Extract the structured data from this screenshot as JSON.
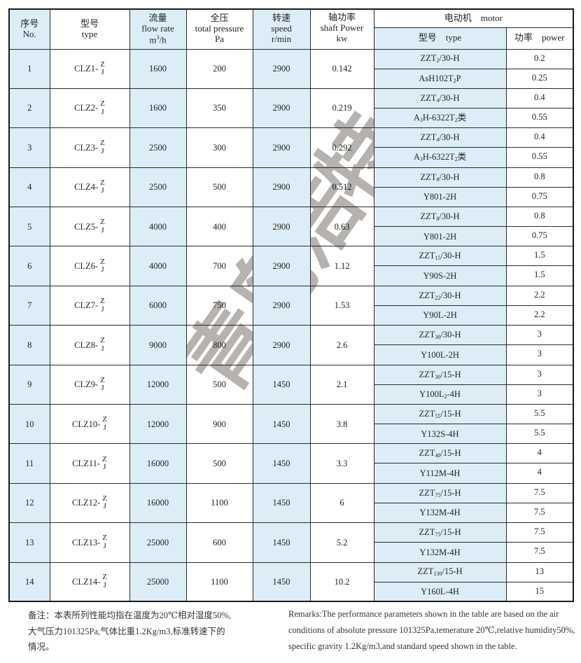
{
  "header": {
    "no_zh": "序号",
    "no_en": "No.",
    "type_zh": "型号",
    "type_en": "type",
    "flow_zh": "流量",
    "flow_en": "flow rate",
    "flow_unit": "m",
    "flow_unit_sup": "3",
    "flow_unit_rest": "/h",
    "pressure_zh": "全压",
    "pressure_en": "total pressure",
    "pressure_unit": "Pa",
    "speed_zh": "转速",
    "speed_en": "speed",
    "speed_unit": "r/min",
    "power_zh": "轴功率",
    "power_en": "shaft Power",
    "power_unit": "kw",
    "motor": "电动机　motor",
    "motor_type": "型号　type",
    "motor_power": "功率　power"
  },
  "colors": {
    "column_fill": "#dcedf7",
    "border": "#1a1a1a"
  },
  "rows": [
    {
      "no": "1",
      "model": "CLZ1-",
      "variants": [
        "Z",
        "J"
      ],
      "flow": "1600",
      "pressure": "200",
      "speed": "2900",
      "shaft": "0.142",
      "motors": [
        {
          "parts": [
            {
              "t": "ZZT"
            },
            {
              "sub": "2"
            },
            {
              "t": "/30-H"
            }
          ],
          "power": "0.2"
        },
        {
          "parts": [
            {
              "t": "AsH102T"
            },
            {
              "sub": "2"
            },
            {
              "t": "P"
            }
          ],
          "power": "0.25"
        }
      ]
    },
    {
      "no": "2",
      "model": "CLZ2-",
      "variants": [
        "Z",
        "J"
      ],
      "flow": "1600",
      "pressure": "350",
      "speed": "2900",
      "shaft": "0.219",
      "motors": [
        {
          "parts": [
            {
              "t": "ZZT"
            },
            {
              "sub": "4"
            },
            {
              "t": "/30-H"
            }
          ],
          "power": "0.4"
        },
        {
          "parts": [
            {
              "t": "A"
            },
            {
              "sub": "3"
            },
            {
              "t": "H-6322T"
            },
            {
              "sub": "2"
            },
            {
              "t": "类"
            }
          ],
          "power": "0.55"
        }
      ]
    },
    {
      "no": "3",
      "model": "CLZ3-",
      "variants": [
        "Z",
        "J"
      ],
      "flow": "2500",
      "pressure": "300",
      "speed": "2900",
      "shaft": "0.292",
      "motors": [
        {
          "parts": [
            {
              "t": "ZZT"
            },
            {
              "sub": "4"
            },
            {
              "t": "/30-H"
            }
          ],
          "power": "0.4"
        },
        {
          "parts": [
            {
              "t": "A"
            },
            {
              "sub": "3"
            },
            {
              "t": "H-6322T"
            },
            {
              "sub": "2"
            },
            {
              "t": "类"
            }
          ],
          "power": "0.55"
        }
      ]
    },
    {
      "no": "4",
      "model": "CLZ4-",
      "variants": [
        "Z",
        "J"
      ],
      "flow": "2500",
      "pressure": "500",
      "speed": "2900",
      "shaft": "0.512",
      "motors": [
        {
          "parts": [
            {
              "t": "ZZT"
            },
            {
              "sub": "8"
            },
            {
              "t": "/30-H"
            }
          ],
          "power": "0.8"
        },
        {
          "parts": [
            {
              "t": "Y801-2H"
            }
          ],
          "power": "0.75"
        }
      ]
    },
    {
      "no": "5",
      "model": "CLZ5-",
      "variants": [
        "Z",
        "J"
      ],
      "flow": "4000",
      "pressure": "400",
      "speed": "2900",
      "shaft": "0.63",
      "motors": [
        {
          "parts": [
            {
              "t": "ZZT"
            },
            {
              "sub": "8"
            },
            {
              "t": "/30-H"
            }
          ],
          "power": "0.8"
        },
        {
          "parts": [
            {
              "t": "Y801-2H"
            }
          ],
          "power": "0.75"
        }
      ]
    },
    {
      "no": "6",
      "model": "CLZ6-",
      "variants": [
        "Z",
        "J"
      ],
      "flow": "4000",
      "pressure": "700",
      "speed": "2900",
      "shaft": "1.12",
      "motors": [
        {
          "parts": [
            {
              "t": "ZZT"
            },
            {
              "sub": "15"
            },
            {
              "t": "/30-H"
            }
          ],
          "power": "1.5"
        },
        {
          "parts": [
            {
              "t": "Y90S-2H"
            }
          ],
          "power": "1.5"
        }
      ]
    },
    {
      "no": "7",
      "model": "CLZ7-",
      "variants": [
        "Z",
        "J"
      ],
      "flow": "6000",
      "pressure": "750",
      "speed": "2900",
      "shaft": "1.53",
      "motors": [
        {
          "parts": [
            {
              "t": "ZZT"
            },
            {
              "sub": "22"
            },
            {
              "t": "/30-H"
            }
          ],
          "power": "2.2"
        },
        {
          "parts": [
            {
              "t": "Y90L-2H"
            }
          ],
          "power": "2.2"
        }
      ]
    },
    {
      "no": "8",
      "model": "CLZ8-",
      "variants": [
        "Z",
        "J"
      ],
      "flow": "9000",
      "pressure": "800",
      "speed": "2900",
      "shaft": "2.6",
      "motors": [
        {
          "parts": [
            {
              "t": "ZZT"
            },
            {
              "sub": "30"
            },
            {
              "t": "/30-H"
            }
          ],
          "power": "3"
        },
        {
          "parts": [
            {
              "t": "Y100L-2H"
            }
          ],
          "power": "3"
        }
      ]
    },
    {
      "no": "9",
      "model": "CLZ9-",
      "variants": [
        "Z",
        "J"
      ],
      "flow": "12000",
      "pressure": "500",
      "speed": "1450",
      "shaft": "2.1",
      "motors": [
        {
          "parts": [
            {
              "t": "ZZT"
            },
            {
              "sub": "30"
            },
            {
              "t": "/15-H"
            }
          ],
          "power": "3"
        },
        {
          "parts": [
            {
              "t": "Y100L"
            },
            {
              "sub": "2"
            },
            {
              "t": "-4H"
            }
          ],
          "power": "3"
        }
      ]
    },
    {
      "no": "10",
      "model": "CLZ10-",
      "variants": [
        "Z",
        "J"
      ],
      "flow": "12000",
      "pressure": "900",
      "speed": "1450",
      "shaft": "3.8",
      "motors": [
        {
          "parts": [
            {
              "t": "ZZT"
            },
            {
              "sub": "55"
            },
            {
              "t": "/15-H"
            }
          ],
          "power": "5.5"
        },
        {
          "parts": [
            {
              "t": "Y132S-4H"
            }
          ],
          "power": "5.5"
        }
      ]
    },
    {
      "no": "11",
      "model": "CLZ11-",
      "variants": [
        "Z",
        "J"
      ],
      "flow": "16000",
      "pressure": "500",
      "speed": "1450",
      "shaft": "3.3",
      "motors": [
        {
          "parts": [
            {
              "t": "ZZT"
            },
            {
              "sub": "40"
            },
            {
              "t": "/15-H"
            }
          ],
          "power": "4"
        },
        {
          "parts": [
            {
              "t": "Y112M-4H"
            }
          ],
          "power": "4"
        }
      ]
    },
    {
      "no": "12",
      "model": "CLZ12-",
      "variants": [
        "Z",
        "J"
      ],
      "flow": "16000",
      "pressure": "1100",
      "speed": "1450",
      "shaft": "6",
      "motors": [
        {
          "parts": [
            {
              "t": "ZZT"
            },
            {
              "sub": "75"
            },
            {
              "t": "/15-H"
            }
          ],
          "power": "7.5"
        },
        {
          "parts": [
            {
              "t": "Y132M-4H"
            }
          ],
          "power": "7.5"
        }
      ]
    },
    {
      "no": "13",
      "model": "CLZ13-",
      "variants": [
        "Z",
        "J"
      ],
      "flow": "25000",
      "pressure": "600",
      "speed": "1450",
      "shaft": "5.2",
      "motors": [
        {
          "parts": [
            {
              "t": "ZZT"
            },
            {
              "sub": "75"
            },
            {
              "t": "/15-H"
            }
          ],
          "power": "7.5"
        },
        {
          "parts": [
            {
              "t": "Y132M-4H"
            }
          ],
          "power": "7.5"
        }
      ]
    },
    {
      "no": "14",
      "model": "CLZ14-",
      "variants": [
        "Z",
        "J"
      ],
      "flow": "25000",
      "pressure": "1100",
      "speed": "1450",
      "shaft": "10.2",
      "motors": [
        {
          "parts": [
            {
              "t": "ZZT"
            },
            {
              "sub": "130"
            },
            {
              "t": "/15-H"
            }
          ],
          "power": "13"
        },
        {
          "parts": [
            {
              "t": "Y160L-4H"
            }
          ],
          "power": "15"
        }
      ]
    }
  ],
  "notes": {
    "zh": [
      "备注：本表所列性能均指在温度为20℃相对湿度50%,",
      "大气压力101325Pa,气体比重1.2Kg/m3,标准转速下的",
      "情况。"
    ],
    "en": [
      "Remarks:The performance parameters shown in the table are based on the air",
      "conditions of absolute pressure 101325Pa,temerature 20℃,relative humidity50%,",
      "specific gravity 1.2Kg/m3,and standard speed shown in the table."
    ]
  },
  "watermark": "青岛浩特"
}
